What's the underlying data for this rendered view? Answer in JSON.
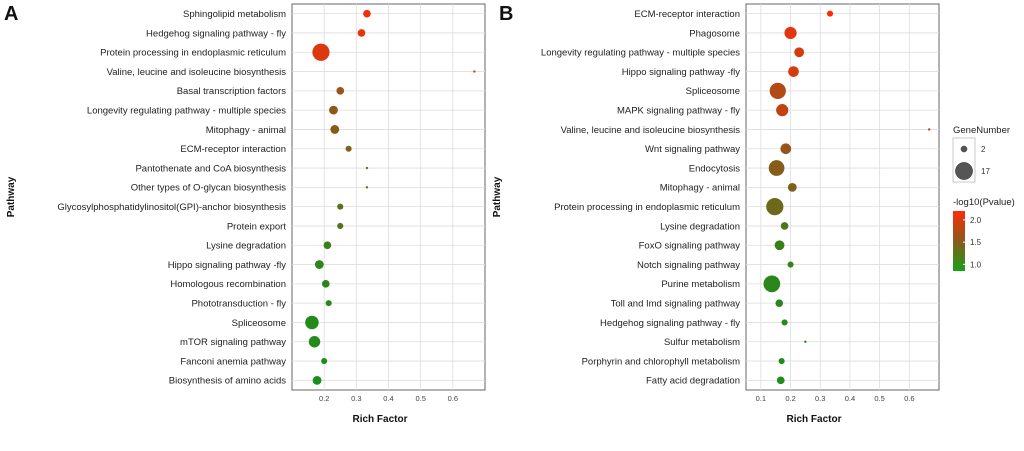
{
  "chart_data": [
    {
      "panel": "A",
      "type": "scatter",
      "xlabel": "Rich Factor",
      "ylabel": "Pathway",
      "xlim": [
        0.1,
        0.7
      ],
      "xticks": [
        "0.2",
        "0.3",
        "0.4",
        "0.5",
        "0.6"
      ],
      "points": [
        {
          "pathway": "Sphingolipid metabolism",
          "rich_factor": 0.333,
          "gene_number": 3,
          "neg_log10_p": 2.1
        },
        {
          "pathway": "Hedgehog signaling pathway - fly",
          "rich_factor": 0.316,
          "gene_number": 3,
          "neg_log10_p": 2.05
        },
        {
          "pathway": "Protein processing in endoplasmic reticulum",
          "rich_factor": 0.19,
          "gene_number": 17,
          "neg_log10_p": 2.0
        },
        {
          "pathway": "Valine, leucine and isoleucine biosynthesis",
          "rich_factor": 0.667,
          "gene_number": 1,
          "neg_log10_p": 1.95
        },
        {
          "pathway": "Basal transcription factors",
          "rich_factor": 0.25,
          "gene_number": 3,
          "neg_log10_p": 1.65
        },
        {
          "pathway": "Longevity regulating pathway - multiple species",
          "rich_factor": 0.229,
          "gene_number": 4,
          "neg_log10_p": 1.55
        },
        {
          "pathway": "Mitophagy - animal",
          "rich_factor": 0.233,
          "gene_number": 4,
          "neg_log10_p": 1.5
        },
        {
          "pathway": "ECM-receptor interaction",
          "rich_factor": 0.276,
          "gene_number": 2,
          "neg_log10_p": 1.45
        },
        {
          "pathway": "Pantothenate and CoA biosynthesis",
          "rich_factor": 0.333,
          "gene_number": 1,
          "neg_log10_p": 1.35
        },
        {
          "pathway": "Other types of O-glycan biosynthesis",
          "rich_factor": 0.333,
          "gene_number": 1,
          "neg_log10_p": 1.35
        },
        {
          "pathway": "Glycosylphosphatidylinositol(GPI)-anchor biosynthesis",
          "rich_factor": 0.25,
          "gene_number": 2,
          "neg_log10_p": 1.2
        },
        {
          "pathway": "Protein export",
          "rich_factor": 0.25,
          "gene_number": 2,
          "neg_log10_p": 1.2
        },
        {
          "pathway": "Lysine degradation",
          "rich_factor": 0.21,
          "gene_number": 3,
          "neg_log10_p": 1.05
        },
        {
          "pathway": "Hippo signaling pathway -fly",
          "rich_factor": 0.185,
          "gene_number": 4,
          "neg_log10_p": 0.98
        },
        {
          "pathway": "Homologous recombination",
          "rich_factor": 0.205,
          "gene_number": 3,
          "neg_log10_p": 0.95
        },
        {
          "pathway": "Phototransduction - fly",
          "rich_factor": 0.214,
          "gene_number": 2,
          "neg_log10_p": 0.95
        },
        {
          "pathway": "Spliceosome",
          "rich_factor": 0.162,
          "gene_number": 10,
          "neg_log10_p": 0.9
        },
        {
          "pathway": "mTOR signaling pathway",
          "rich_factor": 0.17,
          "gene_number": 7,
          "neg_log10_p": 0.9
        },
        {
          "pathway": "Fanconi anemia pathway",
          "rich_factor": 0.2,
          "gene_number": 2,
          "neg_log10_p": 0.88
        },
        {
          "pathway": "Biosynthesis of amino acids",
          "rich_factor": 0.178,
          "gene_number": 4,
          "neg_log10_p": 0.86
        }
      ]
    },
    {
      "panel": "B",
      "type": "scatter",
      "xlabel": "Rich Factor",
      "ylabel": "Pathway",
      "xlim": [
        0.05,
        0.7
      ],
      "xticks": [
        "0.1",
        "0.2",
        "0.3",
        "0.4",
        "0.5",
        "0.6"
      ],
      "points": [
        {
          "pathway": "ECM-receptor interaction",
          "rich_factor": 0.333,
          "gene_number": 2,
          "neg_log10_p": 2.2
        },
        {
          "pathway": "Phagosome",
          "rich_factor": 0.2,
          "gene_number": 8,
          "neg_log10_p": 2.05
        },
        {
          "pathway": "Longevity regulating pathway - multiple species",
          "rich_factor": 0.229,
          "gene_number": 5,
          "neg_log10_p": 1.95
        },
        {
          "pathway": "Hippo signaling pathway -fly",
          "rich_factor": 0.21,
          "gene_number": 6,
          "neg_log10_p": 1.95
        },
        {
          "pathway": "Spliceosome",
          "rich_factor": 0.157,
          "gene_number": 15,
          "neg_log10_p": 1.75
        },
        {
          "pathway": "MAPK signaling pathway - fly",
          "rich_factor": 0.172,
          "gene_number": 8,
          "neg_log10_p": 1.85
        },
        {
          "pathway": "Valine, leucine and isoleucine biosynthesis",
          "rich_factor": 0.667,
          "gene_number": 1,
          "neg_log10_p": 1.8
        },
        {
          "pathway": "Wnt signaling pathway",
          "rich_factor": 0.184,
          "gene_number": 6,
          "neg_log10_p": 1.6
        },
        {
          "pathway": "Endocytosis",
          "rich_factor": 0.153,
          "gene_number": 14,
          "neg_log10_p": 1.5
        },
        {
          "pathway": "Mitophagy - animal",
          "rich_factor": 0.206,
          "gene_number": 4,
          "neg_log10_p": 1.45
        },
        {
          "pathway": "Protein processing in endoplasmic reticulum",
          "rich_factor": 0.147,
          "gene_number": 17,
          "neg_log10_p": 1.35
        },
        {
          "pathway": "Lysine degradation",
          "rich_factor": 0.18,
          "gene_number": 3,
          "neg_log10_p": 1.15
        },
        {
          "pathway": "FoxO signaling pathway",
          "rich_factor": 0.163,
          "gene_number": 5,
          "neg_log10_p": 1.05
        },
        {
          "pathway": "Notch signaling pathway",
          "rich_factor": 0.2,
          "gene_number": 2,
          "neg_log10_p": 1.0
        },
        {
          "pathway": "Purine metabolism",
          "rich_factor": 0.137,
          "gene_number": 16,
          "neg_log10_p": 0.95
        },
        {
          "pathway": "Toll and Imd signaling pathway",
          "rich_factor": 0.162,
          "gene_number": 3,
          "neg_log10_p": 0.95
        },
        {
          "pathway": "Hedgehog signaling pathway - fly",
          "rich_factor": 0.18,
          "gene_number": 2,
          "neg_log10_p": 0.93
        },
        {
          "pathway": "Sulfur metabolism",
          "rich_factor": 0.25,
          "gene_number": 1,
          "neg_log10_p": 0.9
        },
        {
          "pathway": "Porphyrin and chlorophyll metabolism",
          "rich_factor": 0.17,
          "gene_number": 2,
          "neg_log10_p": 0.88
        },
        {
          "pathway": "Fatty acid degradation",
          "rich_factor": 0.167,
          "gene_number": 3,
          "neg_log10_p": 0.86
        }
      ]
    }
  ],
  "legend": {
    "size_title": "GeneNumber",
    "size_values": [
      2,
      17
    ],
    "size_labels": [
      "2",
      "17"
    ],
    "color_title": "-log10(Pvalue)",
    "color_ticks": [
      "2.0",
      "1.5",
      "1.0"
    ],
    "color_tick_values": [
      2.0,
      1.5,
      1.0
    ],
    "color_range": [
      0.85,
      2.2
    ],
    "color_low": "#1a8f1a",
    "color_mid": "#8a5a1a",
    "color_high": "#ff2a0a"
  }
}
